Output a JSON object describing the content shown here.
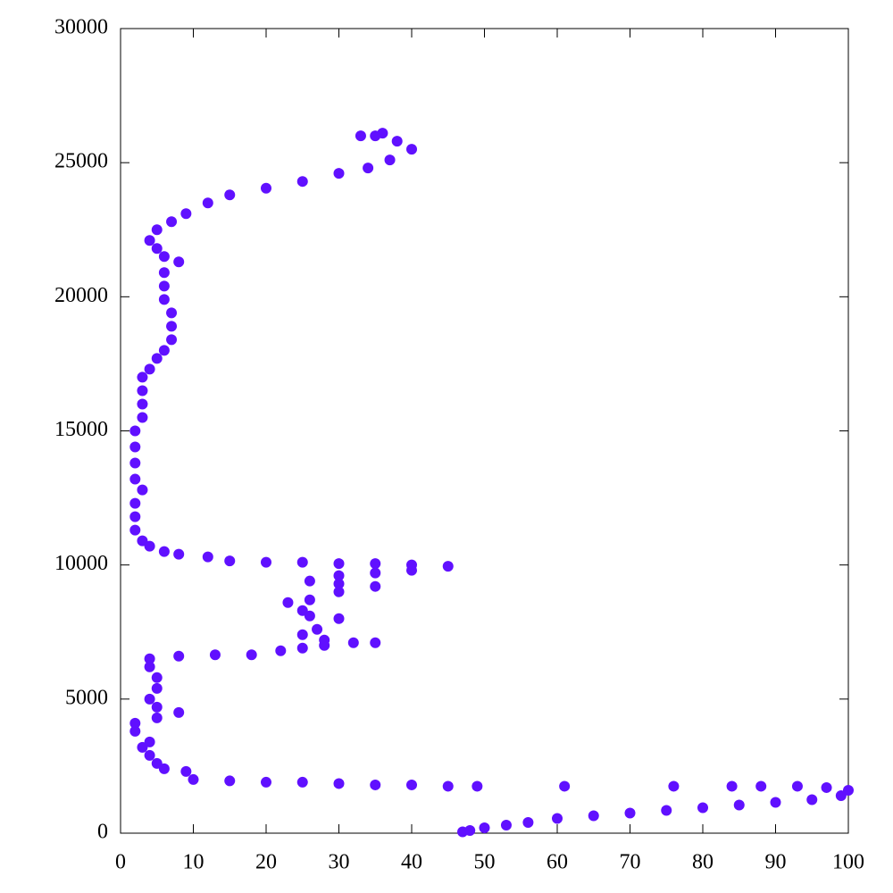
{
  "chart_data": {
    "type": "scatter",
    "color": "#6010ff",
    "x": [
      47,
      48,
      50,
      53,
      56,
      60,
      65,
      70,
      75,
      80,
      85,
      90,
      95,
      99,
      100,
      97,
      93,
      88,
      84,
      76,
      61,
      49,
      45,
      40,
      35,
      30,
      25,
      20,
      15,
      10,
      9,
      6,
      5,
      4,
      3,
      4,
      2,
      2,
      5,
      8,
      5,
      4,
      5,
      5,
      4,
      4,
      8,
      13,
      18,
      22,
      25,
      28,
      32,
      35,
      28,
      25,
      27,
      30,
      26,
      25,
      23,
      26,
      30,
      35,
      30,
      26,
      30,
      35,
      40,
      45,
      40,
      35,
      30,
      25,
      20,
      15,
      12,
      8,
      6,
      4,
      3,
      2,
      2,
      2,
      3,
      2,
      2,
      2,
      2,
      3,
      3,
      3,
      3,
      4,
      5,
      6,
      7,
      7,
      7,
      6,
      6,
      6,
      8,
      6,
      5,
      4,
      5,
      7,
      9,
      12,
      15,
      20,
      25,
      30,
      34,
      37,
      40,
      38,
      35,
      36,
      33
    ],
    "values": [
      50,
      100,
      200,
      300,
      400,
      550,
      650,
      750,
      850,
      950,
      1050,
      1150,
      1250,
      1400,
      1600,
      1700,
      1750,
      1750,
      1750,
      1750,
      1750,
      1750,
      1750,
      1800,
      1800,
      1850,
      1900,
      1900,
      1950,
      2000,
      2300,
      2400,
      2600,
      2900,
      3200,
      3400,
      3800,
      4100,
      4300,
      4500,
      4700,
      5000,
      5400,
      5800,
      6200,
      6500,
      6600,
      6650,
      6650,
      6800,
      6900,
      7000,
      7100,
      7100,
      7200,
      7400,
      7600,
      8000,
      8100,
      8300,
      8600,
      8700,
      9000,
      9200,
      9300,
      9400,
      9600,
      9700,
      9800,
      9950,
      10000,
      10050,
      10050,
      10100,
      10100,
      10150,
      10300,
      10400,
      10500,
      10700,
      10900,
      11300,
      11800,
      12300,
      12800,
      13200,
      13800,
      14400,
      15000,
      15500,
      16000,
      16500,
      17000,
      17300,
      17700,
      18000,
      18400,
      18900,
      19400,
      19900,
      20400,
      20900,
      21300,
      21500,
      21800,
      22100,
      22500,
      22800,
      23100,
      23500,
      23800,
      24050,
      24300,
      24600,
      24800,
      25100,
      25500,
      25800,
      26000,
      26100,
      26000
    ],
    "xlim": [
      0,
      100
    ],
    "xticks": [
      0,
      10,
      20,
      30,
      40,
      50,
      60,
      70,
      80,
      90,
      100
    ],
    "ylim": [
      0,
      30000
    ],
    "yticks": [
      0,
      5000,
      10000,
      15000,
      20000,
      25000,
      30000
    ]
  }
}
